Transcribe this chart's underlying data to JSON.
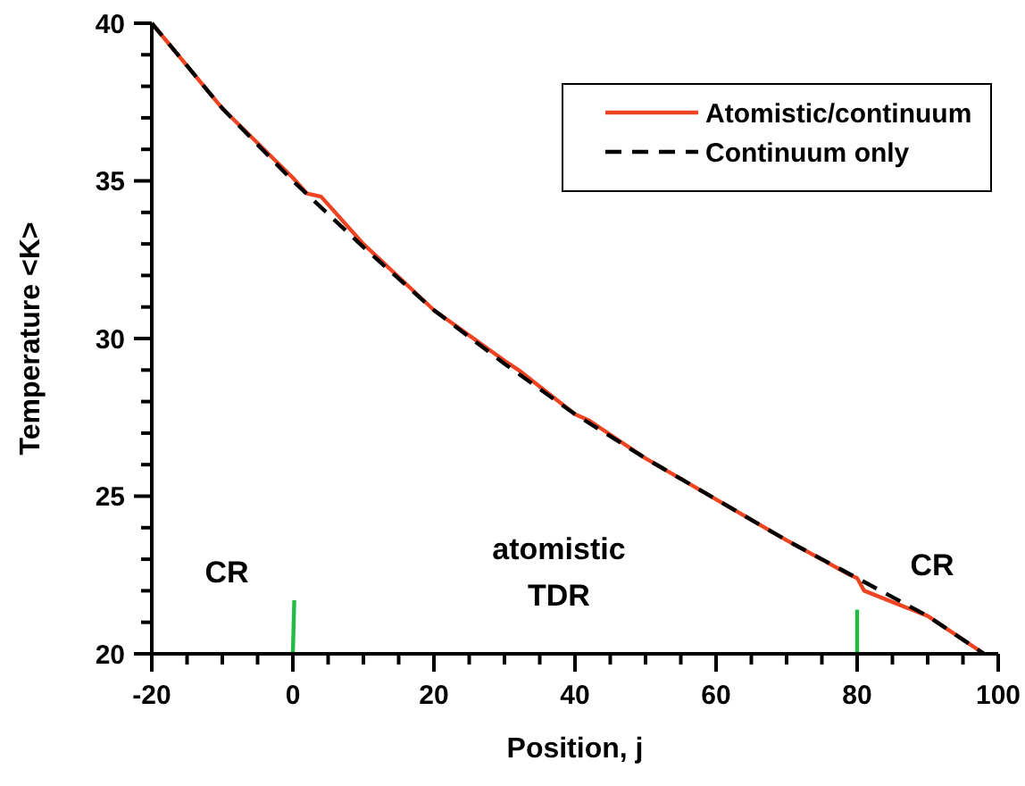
{
  "chart_data": {
    "type": "line",
    "xlabel": "Position, j",
    "ylabel": "Temperature <K>",
    "xlim": [
      -20,
      100
    ],
    "ylim": [
      20,
      40
    ],
    "xticks": [
      -20,
      {
        "value": -15,
        "label": null
      },
      {
        "value": -10,
        "label": null
      },
      {
        "value": -5,
        "label": null
      },
      0,
      {
        "value": 5,
        "label": null
      },
      {
        "value": 10,
        "label": null
      },
      {
        "value": 15,
        "label": null
      },
      20,
      {
        "value": 25,
        "label": null
      },
      {
        "value": 30,
        "label": null
      },
      {
        "value": 35,
        "label": null
      },
      40,
      {
        "value": 45,
        "label": null
      },
      {
        "value": 50,
        "label": null
      },
      {
        "value": 55,
        "label": null
      },
      60,
      {
        "value": 65,
        "label": null
      },
      {
        "value": 70,
        "label": null
      },
      {
        "value": 75,
        "label": null
      },
      80,
      {
        "value": 85,
        "label": null
      },
      {
        "value": 90,
        "label": null
      },
      {
        "value": 95,
        "label": null
      },
      100
    ],
    "yticks": [
      20,
      {
        "value": 21,
        "label": null
      },
      {
        "value": 22,
        "label": null
      },
      {
        "value": 23,
        "label": null
      },
      {
        "value": 24,
        "label": null
      },
      25,
      {
        "value": 26,
        "label": null
      },
      {
        "value": 27,
        "label": null
      },
      {
        "value": 28,
        "label": null
      },
      {
        "value": 29,
        "label": null
      },
      30,
      {
        "value": 31,
        "label": null
      },
      {
        "value": 32,
        "label": null
      },
      {
        "value": 33,
        "label": null
      },
      {
        "value": 34,
        "label": null
      },
      35,
      {
        "value": 36,
        "label": null
      },
      {
        "value": 37,
        "label": null
      },
      {
        "value": 38,
        "label": null
      },
      {
        "value": 39,
        "label": null
      },
      40
    ],
    "grid": false,
    "legend": "top right",
    "marker": "none",
    "series": [
      {
        "name": "Atomistic/continuum",
        "color": "#ee4422",
        "line_style": "solid",
        "x": [
          -20,
          -10,
          0,
          2,
          4,
          8,
          10,
          20,
          30,
          32,
          40,
          42,
          50,
          60,
          70,
          79,
          80,
          81,
          90,
          98
        ],
        "values": [
          40,
          37.3,
          35.1,
          34.6,
          34.5,
          33.5,
          33.0,
          30.9,
          29.3,
          29.0,
          27.6,
          27.4,
          26.2,
          24.9,
          23.6,
          22.5,
          22.4,
          22.0,
          21.2,
          20.0
        ]
      },
      {
        "name": "Continuum only",
        "color": "#000000",
        "line_style": "dashed",
        "x": [
          -20,
          -10,
          0,
          10,
          20,
          30,
          40,
          50,
          60,
          70,
          80,
          90,
          98
        ],
        "values": [
          40,
          37.3,
          35.0,
          32.9,
          30.9,
          29.2,
          27.6,
          26.2,
          24.9,
          23.6,
          22.4,
          21.2,
          20.0
        ]
      },
      {
        "color": "#22bb44",
        "line_style": "solid",
        "x": [
          0,
          0.2
        ],
        "values": [
          20,
          21.7
        ]
      },
      {
        "color": "#22bb44",
        "line_style": "solid",
        "x": [
          80,
          80
        ],
        "values": [
          20,
          21.4
        ]
      }
    ],
    "annotations": [
      "CR",
      "atomistic",
      "TDR",
      "CR"
    ]
  }
}
